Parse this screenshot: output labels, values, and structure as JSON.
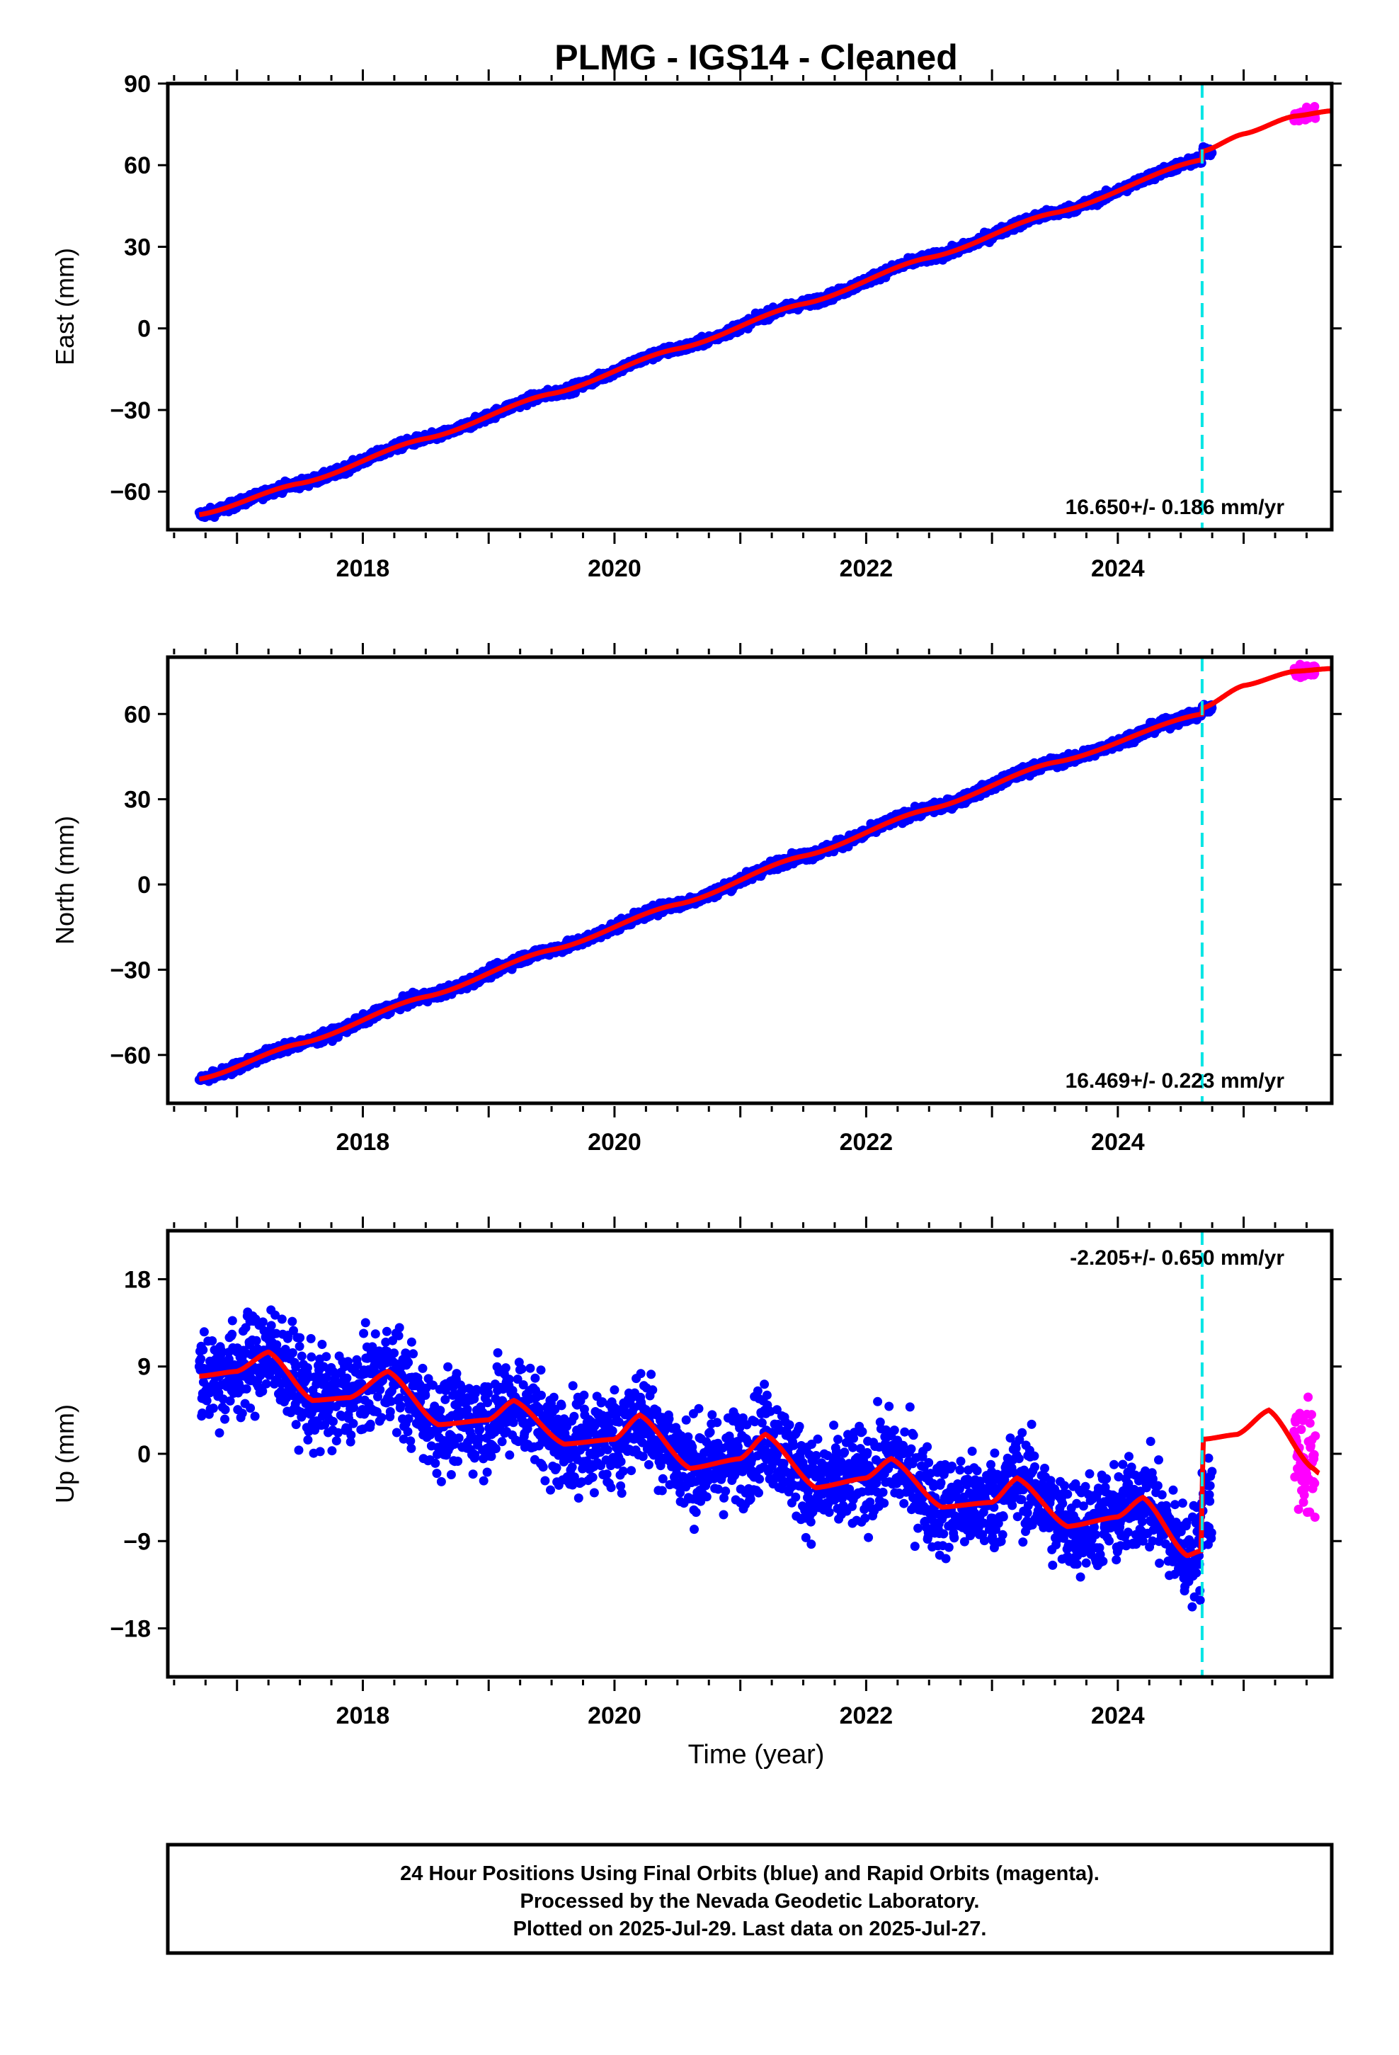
{
  "title": "PLMG  - IGS14 - Cleaned",
  "xlabel": "Time (year)",
  "caption": [
    "24 Hour Positions Using Final Orbits (blue) and Rapid Orbits (magenta).",
    "Processed by the Nevada Geodetic Laboratory.",
    "Plotted on 2025-Jul-29. Last data on 2025-Jul-27."
  ],
  "colors": {
    "final": "#0000ff",
    "rapid": "#ff00ff",
    "model": "#ff0000",
    "equipment_change": "#00e5e5",
    "frame": "#000000"
  },
  "chart_data": [
    {
      "type": "scatter",
      "component": "East",
      "ylabel": "East (mm)",
      "xlim": [
        2016.45,
        2025.7
      ],
      "ylim": [
        -74,
        90
      ],
      "yticks": [
        -60,
        -30,
        0,
        30,
        60,
        90
      ],
      "xticks": [
        2018,
        2020,
        2022,
        2024
      ],
      "rate_label": "16.650+/- 0.186 mm/yr",
      "rate_position": "bottom-right",
      "rate": 16.65,
      "annual_amplitude": 1.3,
      "noise": 1.4,
      "offset_at_break": 3,
      "break_year": 2024.67,
      "final_range": [
        2016.7,
        2024.75
      ],
      "rapid_range": [
        2025.4,
        2025.57
      ],
      "model_knots": [
        [
          2016.7,
          -68.5
        ],
        [
          2017.5,
          -57
        ],
        [
          2018.5,
          -40.5
        ],
        [
          2019.5,
          -24
        ],
        [
          2020.5,
          -7.5
        ],
        [
          2021.5,
          9
        ],
        [
          2022.5,
          26
        ],
        [
          2023.5,
          42.5
        ],
        [
          2024.67,
          62
        ],
        [
          2024.67,
          65
        ],
        [
          2025.0,
          71.5
        ],
        [
          2025.4,
          78
        ],
        [
          2025.7,
          80
        ]
      ]
    },
    {
      "type": "scatter",
      "component": "North",
      "ylabel": "North (mm)",
      "xlim": [
        2016.45,
        2025.7
      ],
      "ylim": [
        -77,
        80
      ],
      "yticks": [
        -60,
        -30,
        0,
        30,
        60
      ],
      "xticks": [
        2018,
        2020,
        2022,
        2024
      ],
      "rate_label": "16.469+/- 0.223 mm/yr",
      "rate_position": "bottom-right",
      "rate": 16.47,
      "annual_amplitude": 2.2,
      "noise": 1.5,
      "offset_at_break": 2,
      "break_year": 2024.67,
      "final_range": [
        2016.7,
        2024.75
      ],
      "rapid_range": [
        2025.4,
        2025.57
      ],
      "model_knots": [
        [
          2016.7,
          -68.5
        ],
        [
          2017.5,
          -56
        ],
        [
          2018.5,
          -39.5
        ],
        [
          2019.5,
          -23
        ],
        [
          2020.5,
          -7
        ],
        [
          2021.5,
          10
        ],
        [
          2022.5,
          26.5
        ],
        [
          2023.5,
          43
        ],
        [
          2024.67,
          60
        ],
        [
          2024.67,
          62
        ],
        [
          2025.0,
          70
        ],
        [
          2025.4,
          75
        ],
        [
          2025.7,
          76
        ]
      ]
    },
    {
      "type": "scatter",
      "component": "Up",
      "ylabel": "Up (mm)",
      "xlim": [
        2016.45,
        2025.7
      ],
      "ylim": [
        -23,
        23
      ],
      "yticks": [
        -18,
        -9,
        0,
        9,
        18
      ],
      "xticks": [
        2018,
        2020,
        2022,
        2024
      ],
      "rate_label": "-2.205+/- 0.650 mm/yr",
      "rate_position": "top-right",
      "rate": -2.2,
      "annual_amplitude": 2.6,
      "noise": 4.2,
      "break_year": 2024.67,
      "final_range": [
        2016.7,
        2024.75
      ],
      "rapid_range": [
        2025.4,
        2025.57
      ],
      "model_knots": [
        [
          2016.7,
          8
        ],
        [
          2017.0,
          8.5
        ],
        [
          2017.25,
          10.5
        ],
        [
          2017.6,
          5.5
        ],
        [
          2017.9,
          5.8
        ],
        [
          2018.2,
          8.5
        ],
        [
          2018.6,
          3
        ],
        [
          2019.0,
          3.5
        ],
        [
          2019.2,
          5.5
        ],
        [
          2019.6,
          1.0
        ],
        [
          2020.0,
          1.5
        ],
        [
          2020.2,
          4
        ],
        [
          2020.6,
          -1.5
        ],
        [
          2021.0,
          -0.5
        ],
        [
          2021.2,
          2
        ],
        [
          2021.6,
          -3.5
        ],
        [
          2022.0,
          -2.5
        ],
        [
          2022.2,
          -0.5
        ],
        [
          2022.6,
          -5.5
        ],
        [
          2023.0,
          -5
        ],
        [
          2023.2,
          -2.5
        ],
        [
          2023.6,
          -7.5
        ],
        [
          2024.0,
          -6.5
        ],
        [
          2024.2,
          -4.5
        ],
        [
          2024.55,
          -10.5
        ],
        [
          2024.66,
          -10
        ],
        [
          2024.68,
          1.5
        ],
        [
          2024.95,
          2
        ],
        [
          2025.2,
          4.5
        ],
        [
          2025.55,
          -1.5
        ],
        [
          2025.6,
          -2
        ]
      ]
    }
  ]
}
